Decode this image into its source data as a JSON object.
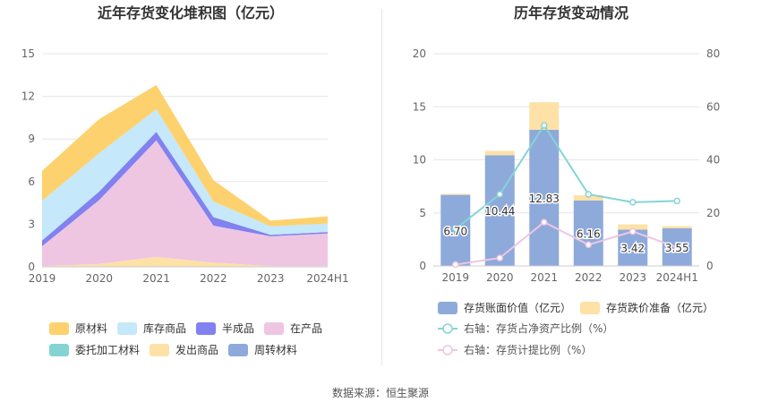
{
  "source_text": "数据来源：恒生聚源",
  "chart_data": [
    {
      "type": "area",
      "stacked": true,
      "title": "近年存货变化堆积图（亿元）",
      "categories": [
        "2019",
        "2020",
        "2021",
        "2022",
        "2023",
        "2024H1"
      ],
      "ylim": [
        0,
        15
      ],
      "yticks": [
        "0",
        "3",
        "6",
        "9",
        "12",
        "15"
      ],
      "grid": true,
      "legend_position": "bottom",
      "series": [
        {
          "name": "周转材料",
          "color": "#8eaadb",
          "values": [
            0,
            0,
            0,
            0,
            0,
            0
          ]
        },
        {
          "name": "发出商品",
          "color": "#fde1a6",
          "values": [
            0.05,
            0.2,
            0.7,
            0.3,
            0.05,
            0.05
          ]
        },
        {
          "name": "委托加工材料",
          "color": "#85d4d4",
          "values": [
            0,
            0,
            0,
            0,
            0,
            0
          ]
        },
        {
          "name": "在产品",
          "color": "#eec6e2",
          "values": [
            1.4,
            4.5,
            8.2,
            2.6,
            2.1,
            2.3
          ]
        },
        {
          "name": "半成品",
          "color": "#8181f0",
          "values": [
            0.4,
            0.6,
            0.6,
            0.6,
            0.1,
            0.1
          ]
        },
        {
          "name": "库存商品",
          "color": "#c5e8fb",
          "values": [
            2.8,
            2.7,
            1.6,
            1.1,
            0.6,
            0.6
          ]
        },
        {
          "name": "原材料",
          "color": "#fdd26e",
          "values": [
            2.1,
            2.4,
            1.7,
            1.5,
            0.4,
            0.5
          ]
        }
      ],
      "legend_order": [
        "原材料",
        "库存商品",
        "半成品",
        "在产品",
        "委托加工材料",
        "发出商品",
        "周转材料"
      ]
    },
    {
      "type": "bar",
      "stacked": true,
      "title": "历年存货变动情况",
      "categories": [
        "2019",
        "2020",
        "2021",
        "2022",
        "2023",
        "2024H1"
      ],
      "ylim": [
        0,
        20
      ],
      "yticks": [
        "0",
        "5",
        "10",
        "15",
        "20"
      ],
      "y2lim": [
        0,
        80
      ],
      "y2ticks": [
        "0",
        "20",
        "40",
        "60",
        "80"
      ],
      "grid": true,
      "legend_position": "bottom",
      "bars": [
        {
          "name": "存货账面价值（亿元）",
          "color": "#8eaadb",
          "values": [
            6.7,
            10.44,
            12.83,
            6.16,
            3.42,
            3.55
          ],
          "labels": [
            "6.70",
            "10.44",
            "12.83",
            "6.16",
            "3.42",
            "3.55"
          ]
        },
        {
          "name": "存货跌价准备（亿元）",
          "color": "#fde1a6",
          "values": [
            0.1,
            0.4,
            2.6,
            0.5,
            0.5,
            0.2
          ]
        }
      ],
      "lines": [
        {
          "name": "右轴：存货占净资产比例（%）",
          "color": "#85d4d4",
          "values": [
            14,
            27,
            53,
            27,
            24,
            24.5
          ]
        },
        {
          "name": "右轴：存货计提比例（%）",
          "color": "#eec6e2",
          "values": [
            0.5,
            3,
            16.5,
            8,
            13,
            7
          ]
        }
      ]
    }
  ]
}
